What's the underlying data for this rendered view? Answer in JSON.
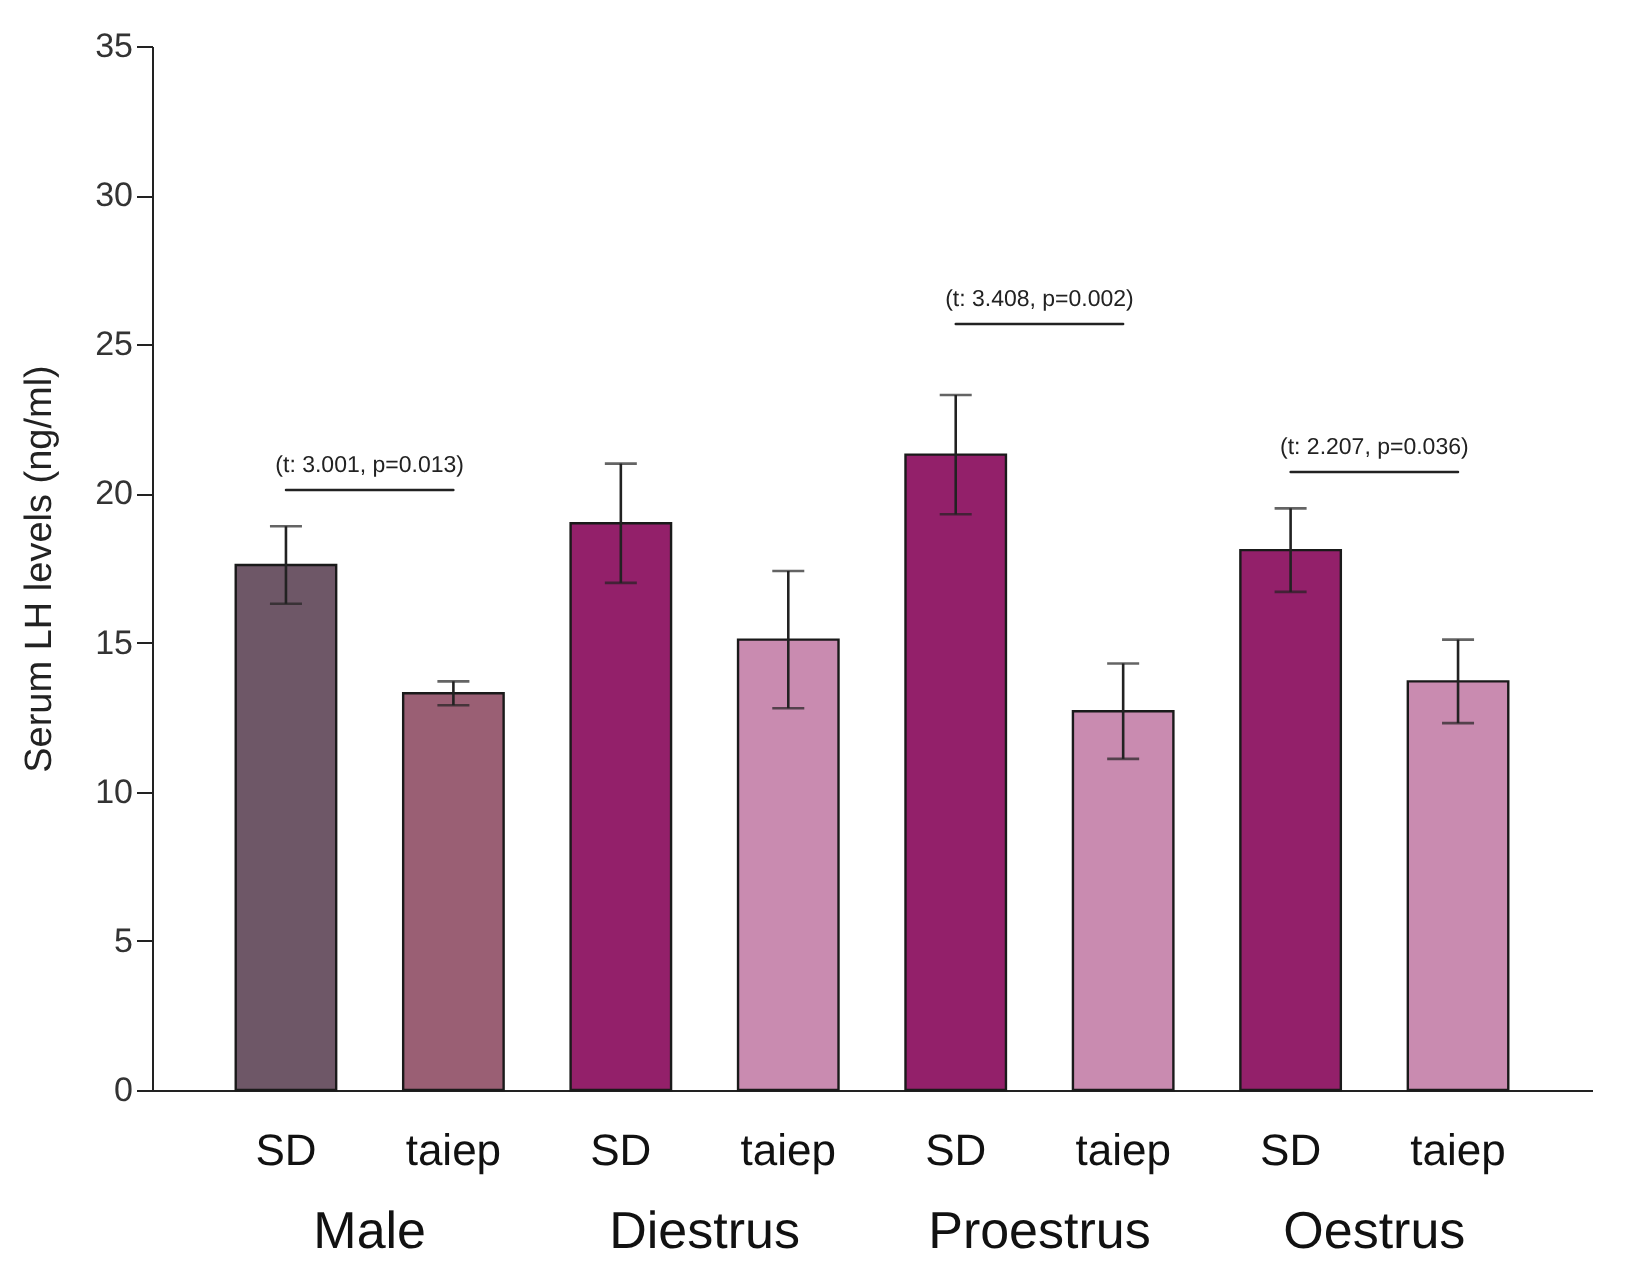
{
  "chart_data": {
    "type": "bar",
    "ylabel": "Serum LH levels (ng/ml)",
    "categories": [
      "SD",
      "taiep",
      "SD",
      "taiep",
      "SD",
      "taiep",
      "SD",
      "taiep"
    ],
    "values": [
      17.6,
      13.3,
      19.0,
      15.1,
      21.3,
      12.7,
      18.1,
      13.7
    ],
    "errors": [
      1.3,
      0.4,
      2.0,
      2.3,
      2.0,
      1.6,
      1.4,
      1.4
    ],
    "colors": [
      "#6e5767",
      "#9a5f74",
      "#93206a",
      "#c98bb0",
      "#93206a",
      "#c98bb0",
      "#93206a",
      "#c98bb0"
    ],
    "ylim": [
      0,
      35
    ],
    "yticks": [
      0,
      5,
      10,
      15,
      20,
      25,
      30,
      35
    ],
    "annotations": [
      "Male",
      "Diestrus",
      "Proestrus",
      "Oestrus",
      "(t: 3.001, p=0.013)",
      "(t: 3.408, p=0.002)",
      "(t: 2.207, p=0.036)"
    ]
  }
}
